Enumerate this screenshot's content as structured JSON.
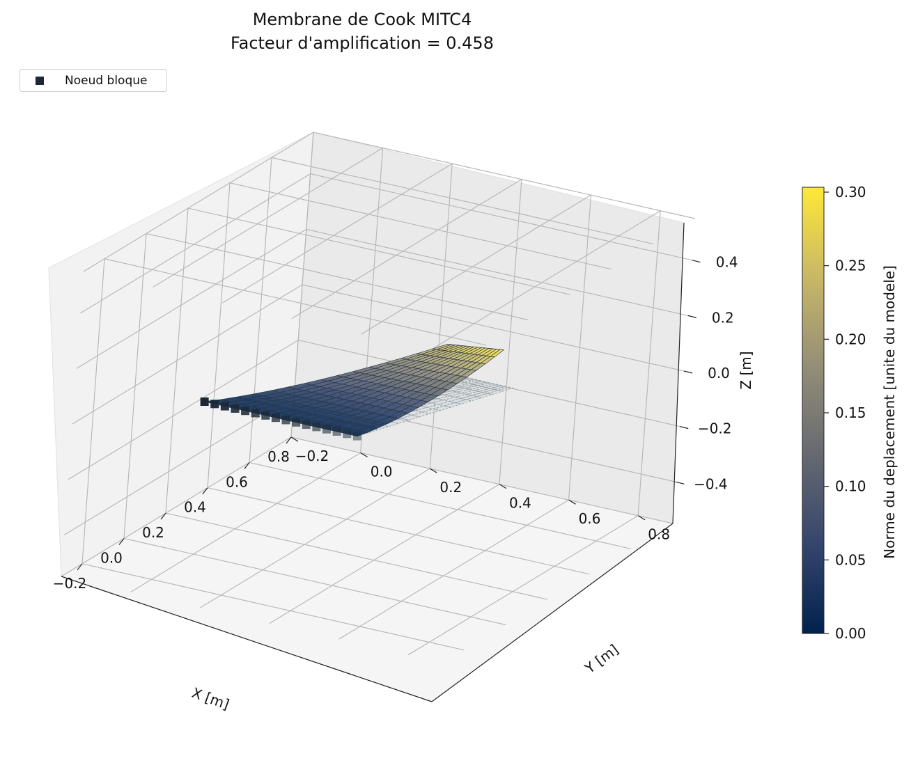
{
  "chart_data": {
    "type": "surface3d",
    "title": "Membrane de Cook MITC4",
    "subtitle": "Facteur d'amplification = 0.458",
    "legend": {
      "entries": [
        "Noeud bloque"
      ],
      "position": "top-left",
      "marker_color": "#1c2836"
    },
    "axes": {
      "x": {
        "label": "X [m]",
        "ticks": [
          -0.2,
          0.0,
          0.2,
          0.4,
          0.6,
          0.8
        ],
        "tick_labels": [
          "−0.2",
          "0.0",
          "0.2",
          "0.4",
          "0.6",
          "0.8"
        ],
        "range": [
          -0.3,
          0.8
        ]
      },
      "y": {
        "label": "Y [m]",
        "ticks": [
          -0.2,
          0.0,
          0.2,
          0.4,
          0.6,
          0.8
        ],
        "tick_labels": [
          "−0.2",
          "0.0",
          "0.2",
          "0.4",
          "0.6",
          "0.8"
        ],
        "range": [
          -0.2,
          0.9
        ]
      },
      "z": {
        "label": "Z [m]",
        "ticks": [
          -0.4,
          -0.2,
          0.0,
          0.2,
          0.4
        ],
        "tick_labels": [
          "−0.4",
          "−0.2",
          "0.0",
          "0.2",
          "0.4"
        ],
        "range": [
          -0.55,
          0.55
        ]
      }
    },
    "grid": true,
    "mesh": {
      "nodes_x": 16,
      "nodes_y": 16,
      "corners_undeformed": [
        [
          0.0,
          0.0
        ],
        [
          0.48,
          0.44
        ],
        [
          0.48,
          0.6
        ],
        [
          0.0,
          0.44
        ]
      ],
      "amplification": 0.458,
      "max_displacement": 0.3
    },
    "colorbar": {
      "label": "Norme du deplacement [unite du modele]",
      "min": 0.0,
      "max": 0.3,
      "ticks": [
        0.0,
        0.05,
        0.1,
        0.15,
        0.2,
        0.25,
        0.3
      ],
      "tick_labels": [
        "0.00",
        "0.05",
        "0.10",
        "0.15",
        "0.20",
        "0.25",
        "0.30"
      ],
      "colormap": "cividis",
      "colors": [
        "#00224e",
        "#35456c",
        "#666970",
        "#948e77",
        "#c8b866",
        "#fee838"
      ]
    },
    "colors": {
      "blocked_node": "#1c2836",
      "undeformed_mesh": "#9aa3a8",
      "mesh_edge": "#2b3a4a"
    }
  }
}
